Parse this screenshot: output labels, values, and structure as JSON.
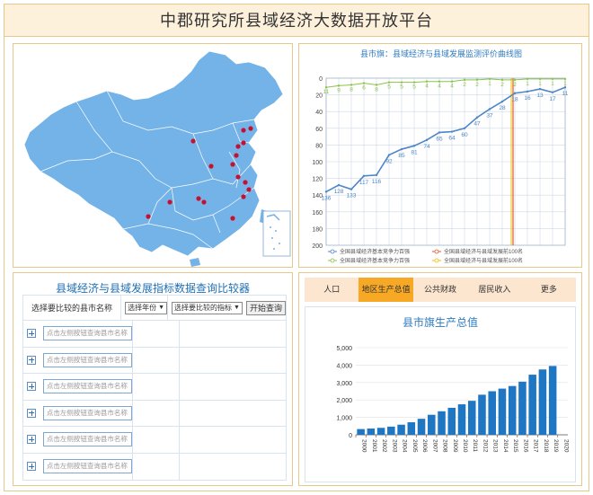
{
  "header": {
    "title": "中郡研究所县域经济大数据开放平台"
  },
  "line_chart": {
    "title": "县市旗：县域经济与县域发展监测评价曲线图",
    "y_ticks": [
      "0",
      "20",
      "40",
      "60",
      "80",
      "100",
      "120",
      "140",
      "160",
      "180",
      "200"
    ],
    "legend": [
      {
        "label": "全国县域经济基本竞争力百强",
        "color": "#4f86c6"
      },
      {
        "label": "全国县域经济与县域发展前100名",
        "color": "#e05a2b"
      },
      {
        "label": "全国县域经济基本竞争力百强",
        "color": "#8bc34a"
      },
      {
        "label": "全国县域经济与县域发展前100名",
        "color": "#f0c000"
      }
    ]
  },
  "chart_data": [
    {
      "type": "line",
      "title": "县市旗：县域经济与县域发展监测评价曲线图",
      "ylim": [
        200,
        0
      ],
      "y_inverted": true,
      "series": [
        {
          "name": "全国县域经济基本竞争力百强",
          "values": [
            136,
            128,
            133,
            117,
            116,
            92,
            85,
            81,
            74,
            65,
            64,
            60,
            47,
            37,
            28,
            18,
            16,
            13,
            17,
            11
          ]
        },
        {
          "name": "全国县域经济与县域发展前100名",
          "values": [
            11,
            9,
            8,
            6,
            8,
            5,
            5,
            5,
            4,
            4,
            4,
            2,
            2,
            1,
            2,
            2,
            1,
            1,
            1,
            1
          ]
        }
      ]
    },
    {
      "type": "bar",
      "title": "县市旗生产总值",
      "categories": [
        "2000",
        "2001",
        "2002",
        "2003",
        "2004",
        "2005",
        "2006",
        "2007",
        "2008",
        "2009",
        "2010",
        "2011",
        "2012",
        "2013",
        "2014",
        "2015",
        "2016",
        "2017",
        "2018",
        "2019",
        "2020"
      ],
      "values": [
        330,
        360,
        400,
        470,
        580,
        720,
        920,
        1150,
        1350,
        1550,
        1750,
        1950,
        2300,
        2500,
        2650,
        2800,
        3050,
        3450,
        3750,
        3950,
        0
      ],
      "ylim": [
        0,
        5000
      ],
      "y_ticks": [
        "0",
        "1,000",
        "2,000",
        "3,000",
        "4,000",
        "5,000"
      ]
    }
  ],
  "query": {
    "title": "县域经济与县域发展指标数据查询比较器",
    "col_county": "选择要比较的县市名称",
    "year_select": "选择年份",
    "indicator_select": "选择要比较的指标",
    "start_button": "开始查询",
    "rows": [
      {
        "placeholder": "点击左侧按钮查询县市名称"
      },
      {
        "placeholder": "点击左侧按钮查询县市名称"
      },
      {
        "placeholder": "点击左侧按钮查询县市名称"
      },
      {
        "placeholder": "点击左侧按钮查询县市名称"
      },
      {
        "placeholder": "点击左侧按钮查询县市名称"
      },
      {
        "placeholder": "点击左侧按钮查询县市名称"
      }
    ]
  },
  "tabs": {
    "items": [
      "人口",
      "地区生产总值",
      "公共财政",
      "居民收入",
      "更多"
    ],
    "active": 1
  },
  "bar_chart": {
    "title": "县市旗生产总值"
  },
  "map": {
    "fill": "#74b3e8",
    "border": "#ffffff",
    "marker": "#c8102e"
  }
}
